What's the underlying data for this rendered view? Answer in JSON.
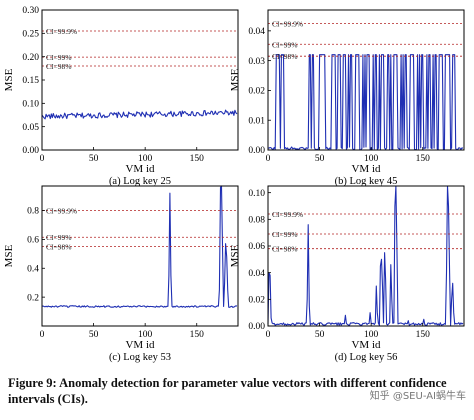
{
  "caption": "Figure 9: Anomaly detection for parameter value vectors with different confidence intervals (CIs).",
  "watermark": "知乎 @SEU-AI蜗牛车",
  "line_color": "#1f2fb3",
  "ci_color": "#b22222",
  "chart_data": [
    {
      "type": "line",
      "subcaption": "(a) Log key 25",
      "xlabel": "VM id",
      "ylabel": "MSE",
      "xlim": [
        0,
        190
      ],
      "ylim": [
        0,
        0.3
      ],
      "xticks": [
        0,
        50,
        100,
        150
      ],
      "yticks": [
        0.0,
        0.05,
        0.1,
        0.15,
        0.2,
        0.25,
        0.3
      ],
      "ytick_labels": [
        "0.00",
        "0.05",
        "0.10",
        "0.15",
        "0.20",
        "0.25",
        "0.30"
      ],
      "ci_lines": [
        {
          "label": "CI=99.9%",
          "y": 0.255
        },
        {
          "label": "CI=99%",
          "y": 0.199
        },
        {
          "label": "CI=98%",
          "y": 0.18
        }
      ],
      "series": {
        "n": 190,
        "baseline": 0.072,
        "noise": 0.006,
        "trend": 0.008,
        "spikes": []
      }
    },
    {
      "type": "line",
      "subcaption": "(b) Log key 45",
      "xlabel": "VM id",
      "ylabel": "MSE",
      "xlim": [
        0,
        190
      ],
      "ylim": [
        0,
        0.047
      ],
      "xticks": [
        0,
        50,
        100,
        150
      ],
      "yticks": [
        0.0,
        0.01,
        0.02,
        0.03,
        0.04
      ],
      "ytick_labels": [
        "0.00",
        "0.01",
        "0.02",
        "0.03",
        "0.04"
      ],
      "ci_lines": [
        {
          "label": "CI=99.9%",
          "y": 0.0425
        },
        {
          "label": "CI=99%",
          "y": 0.0355
        },
        {
          "label": "CI=98%",
          "y": 0.0315
        }
      ],
      "series": {
        "n": 190,
        "baseline": 0.0005,
        "noise": 0.0005,
        "trend": 0,
        "spikes": [
          [
            8,
            0.032
          ],
          [
            9,
            0.032
          ],
          [
            10,
            0.032
          ],
          [
            11,
            0.032
          ],
          [
            13,
            0.032
          ],
          [
            14,
            0.032
          ],
          [
            15,
            0.032
          ],
          [
            40,
            0.032
          ],
          [
            41,
            0.032
          ],
          [
            43,
            0.032
          ],
          [
            44,
            0.032
          ],
          [
            50,
            0.032
          ],
          [
            51,
            0.032
          ],
          [
            52,
            0.032
          ],
          [
            53,
            0.032
          ],
          [
            54,
            0.032
          ],
          [
            55,
            0.032
          ],
          [
            62,
            0.032
          ],
          [
            63,
            0.032
          ],
          [
            64,
            0.032
          ],
          [
            65,
            0.032
          ],
          [
            68,
            0.032
          ],
          [
            69,
            0.032
          ],
          [
            70,
            0.032
          ],
          [
            73,
            0.032
          ],
          [
            74,
            0.032
          ],
          [
            75,
            0.032
          ],
          [
            78,
            0.032
          ],
          [
            80,
            0.032
          ],
          [
            81,
            0.032
          ],
          [
            85,
            0.032
          ],
          [
            86,
            0.032
          ],
          [
            87,
            0.032
          ],
          [
            88,
            0.032
          ],
          [
            92,
            0.032
          ],
          [
            94,
            0.032
          ],
          [
            96,
            0.032
          ],
          [
            97,
            0.032
          ],
          [
            98,
            0.032
          ],
          [
            102,
            0.032
          ],
          [
            104,
            0.032
          ],
          [
            105,
            0.032
          ],
          [
            108,
            0.032
          ],
          [
            110,
            0.032
          ],
          [
            111,
            0.032
          ],
          [
            112,
            0.032
          ],
          [
            116,
            0.032
          ],
          [
            117,
            0.032
          ],
          [
            119,
            0.032
          ],
          [
            122,
            0.032
          ],
          [
            123,
            0.032
          ],
          [
            124,
            0.032
          ],
          [
            125,
            0.032
          ],
          [
            129,
            0.032
          ],
          [
            131,
            0.032
          ],
          [
            133,
            0.032
          ],
          [
            134,
            0.032
          ],
          [
            138,
            0.032
          ],
          [
            139,
            0.032
          ],
          [
            140,
            0.032
          ],
          [
            141,
            0.032
          ],
          [
            145,
            0.032
          ],
          [
            147,
            0.032
          ],
          [
            149,
            0.032
          ],
          [
            150,
            0.032
          ],
          [
            154,
            0.032
          ],
          [
            156,
            0.032
          ],
          [
            157,
            0.032
          ],
          [
            160,
            0.032
          ],
          [
            162,
            0.032
          ],
          [
            163,
            0.032
          ],
          [
            166,
            0.032
          ],
          [
            167,
            0.032
          ],
          [
            168,
            0.032
          ],
          [
            169,
            0.032
          ],
          [
            172,
            0.032
          ],
          [
            173,
            0.032
          ],
          [
            174,
            0.032
          ],
          [
            175,
            0.032
          ],
          [
            176,
            0.032
          ],
          [
            179,
            0.032
          ],
          [
            180,
            0.032
          ],
          [
            181,
            0.032
          ]
        ]
      }
    },
    {
      "type": "line",
      "subcaption": "(c) Log key 53",
      "xlabel": "VM id",
      "ylabel": "MSE",
      "xlim": [
        0,
        190
      ],
      "ylim": [
        0,
        0.97
      ],
      "xticks": [
        0,
        50,
        100,
        150
      ],
      "yticks": [
        0.2,
        0.4,
        0.6,
        0.8
      ],
      "ytick_labels": [
        "0.2",
        "0.4",
        "0.6",
        "0.8"
      ],
      "ci_lines": [
        {
          "label": "CI=99.9%",
          "y": 0.8
        },
        {
          "label": "CI=99%",
          "y": 0.615
        },
        {
          "label": "CI=98%",
          "y": 0.55
        }
      ],
      "series": {
        "n": 190,
        "baseline": 0.135,
        "noise": 0.006,
        "trend": 0,
        "spikes": [
          [
            123,
            0.35
          ],
          [
            124,
            0.92
          ],
          [
            125,
            0.35
          ],
          [
            172,
            0.25
          ],
          [
            173,
            0.96
          ],
          [
            174,
            0.97
          ],
          [
            175,
            0.55
          ],
          [
            177,
            0.3
          ],
          [
            178,
            0.57
          ],
          [
            179,
            0.48
          ],
          [
            180,
            0.25
          ]
        ]
      }
    },
    {
      "type": "line",
      "subcaption": "(d) Log key 56",
      "xlabel": "VM id",
      "ylabel": "MSE",
      "xlim": [
        0,
        190
      ],
      "ylim": [
        0,
        0.105
      ],
      "xticks": [
        0,
        50,
        100,
        150
      ],
      "yticks": [
        0.0,
        0.02,
        0.04,
        0.06,
        0.08,
        0.1
      ],
      "ytick_labels": [
        "0.00",
        "0.02",
        "0.04",
        "0.06",
        "0.08",
        "0.10"
      ],
      "ci_lines": [
        {
          "label": "CI=99.9%",
          "y": 0.084
        },
        {
          "label": "CI=99%",
          "y": 0.069
        },
        {
          "label": "CI=98%",
          "y": 0.058
        }
      ],
      "series": {
        "n": 190,
        "baseline": 0.0015,
        "noise": 0.001,
        "trend": 0,
        "spikes": [
          [
            1,
            0.04
          ],
          [
            2,
            0.038
          ],
          [
            3,
            0.006
          ],
          [
            38,
            0.02
          ],
          [
            39,
            0.076
          ],
          [
            40,
            0.015
          ],
          [
            75,
            0.008
          ],
          [
            99,
            0.01
          ],
          [
            105,
            0.03
          ],
          [
            106,
            0.01
          ],
          [
            109,
            0.045
          ],
          [
            110,
            0.05
          ],
          [
            111,
            0.03
          ],
          [
            113,
            0.055
          ],
          [
            114,
            0.035
          ],
          [
            119,
            0.046
          ],
          [
            120,
            0.02
          ],
          [
            123,
            0.09
          ],
          [
            124,
            0.105
          ],
          [
            125,
            0.06
          ],
          [
            136,
            0.004
          ],
          [
            151,
            0.005
          ],
          [
            173,
            0.04
          ],
          [
            174,
            0.105
          ],
          [
            175,
            0.09
          ],
          [
            176,
            0.04
          ],
          [
            178,
            0.02
          ],
          [
            179,
            0.032
          ],
          [
            180,
            0.01
          ]
        ]
      }
    }
  ]
}
